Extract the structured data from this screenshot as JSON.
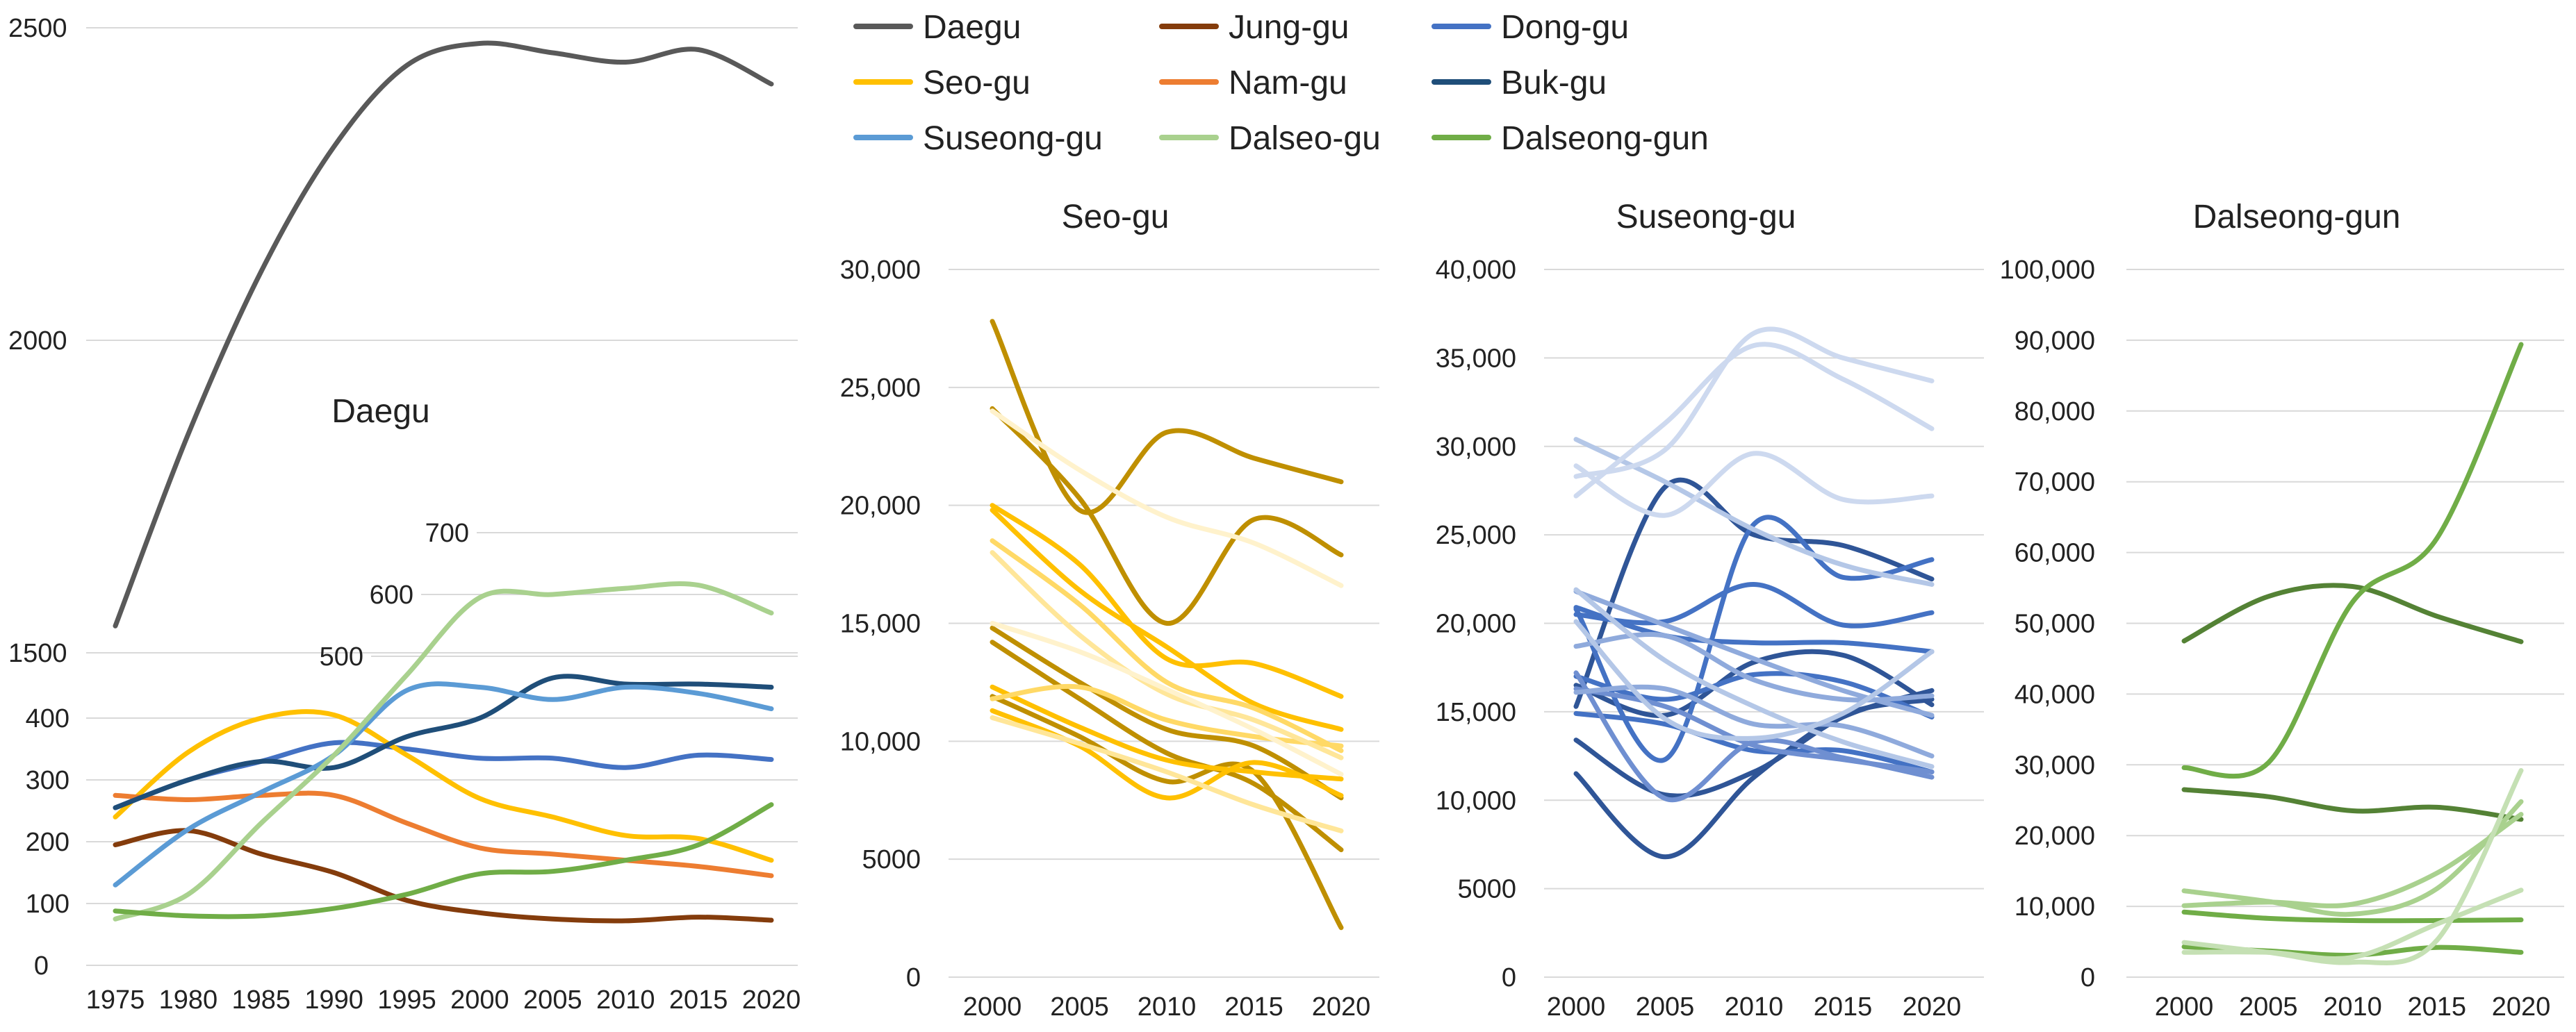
{
  "chart_data": [
    {
      "type": "line",
      "title": "Daegu",
      "x": [
        1975,
        1980,
        1985,
        1990,
        1995,
        2000,
        2005,
        2010,
        2015,
        2020
      ],
      "xlabel": "",
      "ylabel": "",
      "xlim": [
        1975,
        2020
      ],
      "legend_position": "top",
      "grid": true,
      "axes": {
        "upper": {
          "ticks": [
            "1500",
            "2000",
            "2500"
          ],
          "ylim": [
            1500,
            2500
          ]
        },
        "lower": {
          "ticks": [
            "0",
            "100",
            "200",
            "300",
            "400",
            "500",
            "600",
            "700"
          ],
          "ylim": [
            0,
            700
          ]
        }
      },
      "series": [
        {
          "name": "Daegu",
          "axis": "upper",
          "color": "#595959",
          "values": [
            1543,
            1850,
            2110,
            2310,
            2440,
            2475,
            2460,
            2445,
            2465,
            2410
          ]
        },
        {
          "name": "Jung-gu",
          "axis": "lower",
          "color": "#843c0c",
          "values": [
            195,
            218,
            180,
            150,
            105,
            85,
            75,
            72,
            78,
            73
          ]
        },
        {
          "name": "Dong-gu",
          "axis": "lower",
          "color": "#4472c4",
          "values": [
            255,
            300,
            330,
            360,
            350,
            335,
            335,
            320,
            340,
            333
          ]
        },
        {
          "name": "Seo-gu",
          "axis": "lower",
          "color": "#ffc000",
          "values": [
            240,
            345,
            400,
            405,
            340,
            270,
            240,
            210,
            205,
            170
          ]
        },
        {
          "name": "Nam-gu",
          "axis": "lower",
          "color": "#ed7d31",
          "values": [
            275,
            268,
            275,
            275,
            230,
            190,
            180,
            170,
            160,
            145
          ]
        },
        {
          "name": "Buk-gu",
          "axis": "lower",
          "color": "#1f4e79",
          "values": [
            255,
            300,
            330,
            320,
            370,
            400,
            465,
            455,
            455,
            450
          ]
        },
        {
          "name": "Suseong-gu",
          "axis": "lower",
          "color": "#5b9bd5",
          "values": [
            130,
            220,
            280,
            340,
            445,
            450,
            430,
            450,
            440,
            415
          ]
        },
        {
          "name": "Dalseo-gu",
          "axis": "lower",
          "color": "#a9d18e",
          "values": [
            75,
            115,
            230,
            340,
            470,
            595,
            600,
            610,
            615,
            570
          ]
        },
        {
          "name": "Dalseong-gun",
          "axis": "lower",
          "color": "#70ad47",
          "values": [
            88,
            80,
            80,
            92,
            115,
            148,
            152,
            170,
            195,
            260
          ]
        }
      ],
      "legend": [
        "Daegu",
        "Jung-gu",
        "Dong-gu",
        "Seo-gu",
        "Nam-gu",
        "Buk-gu",
        "Suseong-gu",
        "Dalseo-gu",
        "Dalseong-gun"
      ]
    },
    {
      "type": "line",
      "title": "Seo-gu",
      "x": [
        2000,
        2005,
        2010,
        2015,
        2020
      ],
      "xlabel": "",
      "ylabel": "",
      "ylim": [
        0,
        30000
      ],
      "yticks": [
        "0",
        "5000",
        "10,000",
        "15,000",
        "20,000",
        "25,000",
        "30,000"
      ],
      "grid": true,
      "series": [
        {
          "color": "#bf8f00",
          "values": [
            27800,
            19800,
            23100,
            22000,
            21000
          ]
        },
        {
          "color": "#bf8f00",
          "values": [
            24100,
            20300,
            15000,
            19400,
            17900
          ]
        },
        {
          "color": "#bf8f00",
          "values": [
            14800,
            12500,
            10500,
            9800,
            7600
          ]
        },
        {
          "color": "#bf8f00",
          "values": [
            14200,
            11800,
            9500,
            8200,
            5400
          ]
        },
        {
          "color": "#bf8f00",
          "values": [
            11900,
            10200,
            8300,
            8700,
            2100
          ]
        },
        {
          "color": "#ffc000",
          "values": [
            20000,
            17500,
            13500,
            13300,
            11900
          ]
        },
        {
          "color": "#ffc000",
          "values": [
            19800,
            16400,
            14000,
            11600,
            10500
          ]
        },
        {
          "color": "#ffc000",
          "values": [
            11300,
            9800,
            7600,
            9100,
            7700
          ]
        },
        {
          "color": "#ffc000",
          "values": [
            12300,
            10600,
            9200,
            8700,
            8400
          ]
        },
        {
          "color": "#ffd966",
          "values": [
            18500,
            15800,
            12500,
            11400,
            9600
          ]
        },
        {
          "color": "#ffd966",
          "values": [
            11800,
            12300,
            10900,
            10200,
            9800
          ]
        },
        {
          "color": "#ffe699",
          "values": [
            18000,
            14500,
            12000,
            10900,
            9300
          ]
        },
        {
          "color": "#ffe699",
          "values": [
            11000,
            9900,
            8700,
            7300,
            6200
          ]
        },
        {
          "color": "#fff2cc",
          "values": [
            24000,
            21500,
            19500,
            18400,
            16600
          ]
        },
        {
          "color": "#fff2cc",
          "values": [
            15000,
            13800,
            12200,
            10500,
            8600
          ]
        }
      ]
    },
    {
      "type": "line",
      "title": "Suseong-gu",
      "x": [
        2000,
        2005,
        2010,
        2015,
        2020
      ],
      "xlabel": "",
      "ylabel": "",
      "ylim": [
        0,
        40000
      ],
      "yticks": [
        "0",
        "5000",
        "10,000",
        "15,000",
        "20,000",
        "25,000",
        "30,000",
        "35,000",
        "40,000"
      ],
      "grid": true,
      "series": [
        {
          "color": "#2f5597",
          "values": [
            11500,
            6800,
            11300,
            14800,
            15700
          ]
        },
        {
          "color": "#2f5597",
          "values": [
            13400,
            10300,
            11600,
            14700,
            16200
          ]
        },
        {
          "color": "#2f5597",
          "values": [
            15300,
            27700,
            25000,
            24400,
            22500
          ]
        },
        {
          "color": "#2f5597",
          "values": [
            16500,
            14800,
            17800,
            18200,
            15400
          ]
        },
        {
          "color": "#4472c4",
          "values": [
            20800,
            12300,
            25600,
            22600,
            23600
          ]
        },
        {
          "color": "#4472c4",
          "values": [
            20500,
            20100,
            22200,
            19900,
            20600
          ]
        },
        {
          "color": "#4472c4",
          "values": [
            20900,
            19300,
            18900,
            18900,
            18400
          ]
        },
        {
          "color": "#4472c4",
          "values": [
            14900,
            14300,
            12800,
            12800,
            11600
          ]
        },
        {
          "color": "#4472c4",
          "values": [
            17000,
            15700,
            17100,
            16700,
            14700
          ]
        },
        {
          "color": "#6f8fd1",
          "values": [
            17200,
            10100,
            13300,
            12400,
            11300
          ]
        },
        {
          "color": "#6f8fd1",
          "values": [
            16300,
            15300,
            13100,
            12300,
            11600
          ]
        },
        {
          "color": "#8faadc",
          "values": [
            21800,
            19900,
            18000,
            16200,
            14800
          ]
        },
        {
          "color": "#8faadc",
          "values": [
            16100,
            16300,
            14300,
            14200,
            12500
          ]
        },
        {
          "color": "#8faadc",
          "values": [
            18700,
            19300,
            16800,
            15700,
            15900
          ]
        },
        {
          "color": "#b4c7e7",
          "values": [
            30400,
            28000,
            25300,
            23300,
            22200
          ]
        },
        {
          "color": "#b4c7e7",
          "values": [
            21900,
            17900,
            15300,
            13300,
            11900
          ]
        },
        {
          "color": "#b4c7e7",
          "values": [
            20100,
            14600,
            13500,
            14900,
            18400
          ]
        },
        {
          "color": "#cdd9ef",
          "values": [
            28900,
            26100,
            29600,
            27000,
            27200
          ]
        },
        {
          "color": "#cdd9ef",
          "values": [
            27200,
            31300,
            35700,
            33800,
            31000
          ]
        },
        {
          "color": "#cdd9ef",
          "values": [
            28300,
            29800,
            36400,
            35000,
            33700
          ]
        }
      ]
    },
    {
      "type": "line",
      "title": "Dalseong-gun",
      "x": [
        2000,
        2005,
        2010,
        2015,
        2020
      ],
      "xlabel": "",
      "ylabel": "",
      "ylim": [
        0,
        100000
      ],
      "yticks": [
        "0",
        "10,000",
        "20,000",
        "30,000",
        "40,000",
        "50,000",
        "60,000",
        "70,000",
        "80,000",
        "90,000",
        "100,000"
      ],
      "grid": true,
      "series": [
        {
          "color": "#548235",
          "values": [
            47500,
            53800,
            55200,
            51000,
            47400
          ]
        },
        {
          "color": "#548235",
          "values": [
            26500,
            25500,
            23500,
            24000,
            22300
          ]
        },
        {
          "color": "#70ad47",
          "values": [
            29600,
            30300,
            53000,
            62000,
            89400
          ]
        },
        {
          "color": "#70ad47",
          "values": [
            9200,
            8300,
            8000,
            8000,
            8100
          ]
        },
        {
          "color": "#70ad47",
          "values": [
            4300,
            3700,
            3100,
            4200,
            3500
          ]
        },
        {
          "color": "#a9d18e",
          "values": [
            12200,
            10700,
            8900,
            12500,
            24800
          ]
        },
        {
          "color": "#a9d18e",
          "values": [
            10100,
            10600,
            10300,
            14700,
            23000
          ]
        },
        {
          "color": "#c5e0b4",
          "values": [
            4900,
            3500,
            2100,
            5200,
            29200
          ]
        },
        {
          "color": "#c5e0b4",
          "values": [
            3500,
            3500,
            2800,
            7500,
            12300
          ]
        }
      ]
    }
  ]
}
